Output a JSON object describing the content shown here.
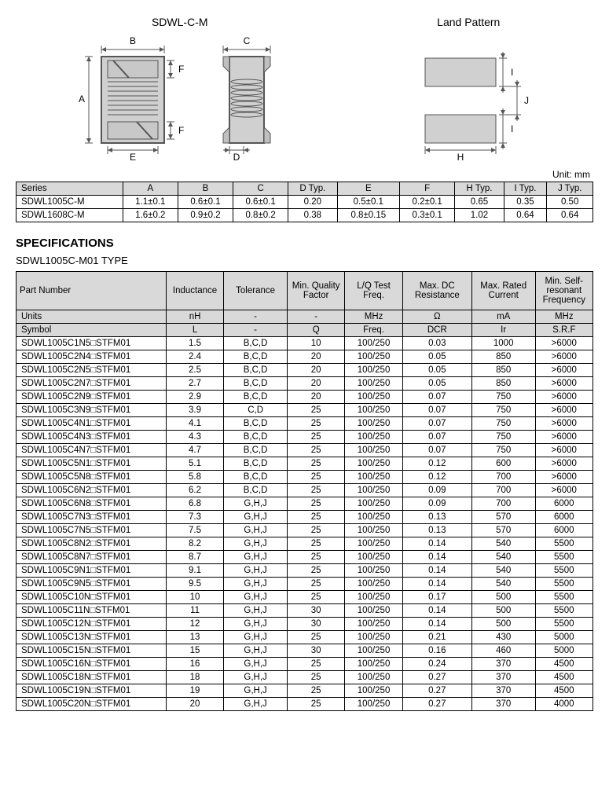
{
  "diagrams": {
    "left_title": "SDWL-C-M",
    "right_title": "Land Pattern",
    "unit": "Unit: mm",
    "labels": {
      "A": "A",
      "B": "B",
      "C": "C",
      "D": "D",
      "E": "E",
      "F": "F",
      "H": "H",
      "I": "I",
      "J": "J"
    }
  },
  "dim_table": {
    "columns": [
      "Series",
      "A",
      "B",
      "C",
      "D Typ.",
      "E",
      "F",
      "H Typ.",
      "I Typ.",
      "J Typ."
    ],
    "rows": [
      [
        "SDWL1005C-M",
        "1.1±0.1",
        "0.6±0.1",
        "0.6±0.1",
        "0.20",
        "0.5±0.1",
        "0.2±0.1",
        "0.65",
        "0.35",
        "0.50"
      ],
      [
        "SDWL1608C-M",
        "1.6±0.2",
        "0.9±0.2",
        "0.8±0.2",
        "0.38",
        "0.8±0.15",
        "0.3±0.1",
        "1.02",
        "0.64",
        "0.64"
      ]
    ]
  },
  "specifications": {
    "section_title": "SPECIFICATIONS",
    "type_title": "SDWL1005C-M01 TYPE",
    "header": [
      "Part Number",
      "Inductance",
      "Tolerance",
      "Min. Quality Factor",
      "L/Q Test Freq.",
      "Max. DC Resistance",
      "Max. Rated Current",
      "Min. Self-resonant Frequency"
    ],
    "units_row": [
      "Units",
      "nH",
      "-",
      "-",
      "MHz",
      "Ω",
      "mA",
      "MHz"
    ],
    "symbol_row": [
      "Symbol",
      "L",
      "-",
      "Q",
      "Freq.",
      "DCR",
      "Ir",
      "S.R.F"
    ],
    "rows": [
      [
        "SDWL1005C1N5□STFM01",
        "1.5",
        "B,C,D",
        "10",
        "100/250",
        "0.03",
        "1000",
        ">6000"
      ],
      [
        "SDWL1005C2N4□STFM01",
        "2.4",
        "B,C,D",
        "20",
        "100/250",
        "0.05",
        "850",
        ">6000"
      ],
      [
        "SDWL1005C2N5□STFM01",
        "2.5",
        "B,C,D",
        "20",
        "100/250",
        "0.05",
        "850",
        ">6000"
      ],
      [
        "SDWL1005C2N7□STFM01",
        "2.7",
        "B,C,D",
        "20",
        "100/250",
        "0.05",
        "850",
        ">6000"
      ],
      [
        "SDWL1005C2N9□STFM01",
        "2.9",
        "B,C,D",
        "20",
        "100/250",
        "0.07",
        "750",
        ">6000"
      ],
      [
        "SDWL1005C3N9□STFM01",
        "3.9",
        "C,D",
        "25",
        "100/250",
        "0.07",
        "750",
        ">6000"
      ],
      [
        "SDWL1005C4N1□STFM01",
        "4.1",
        "B,C,D",
        "25",
        "100/250",
        "0.07",
        "750",
        ">6000"
      ],
      [
        "SDWL1005C4N3□STFM01",
        "4.3",
        "B,C,D",
        "25",
        "100/250",
        "0.07",
        "750",
        ">6000"
      ],
      [
        "SDWL1005C4N7□STFM01",
        "4.7",
        "B,C,D",
        "25",
        "100/250",
        "0.07",
        "750",
        ">6000"
      ],
      [
        "SDWL1005C5N1□STFM01",
        "5.1",
        "B,C,D",
        "25",
        "100/250",
        "0.12",
        "600",
        ">6000"
      ],
      [
        "SDWL1005C5N8□STFM01",
        "5.8",
        "B,C,D",
        "25",
        "100/250",
        "0.12",
        "700",
        ">6000"
      ],
      [
        "SDWL1005C6N2□STFM01",
        "6.2",
        "B,C,D",
        "25",
        "100/250",
        "0.09",
        "700",
        ">6000"
      ],
      [
        "SDWL1005C6N8□STFM01",
        "6.8",
        "G,H,J",
        "25",
        "100/250",
        "0.09",
        "700",
        "6000"
      ],
      [
        "SDWL1005C7N3□STFM01",
        "7.3",
        "G,H,J",
        "25",
        "100/250",
        "0.13",
        "570",
        "6000"
      ],
      [
        "SDWL1005C7N5□STFM01",
        "7.5",
        "G,H,J",
        "25",
        "100/250",
        "0.13",
        "570",
        "6000"
      ],
      [
        "SDWL1005C8N2□STFM01",
        "8.2",
        "G,H,J",
        "25",
        "100/250",
        "0.14",
        "540",
        "5500"
      ],
      [
        "SDWL1005C8N7□STFM01",
        "8.7",
        "G,H,J",
        "25",
        "100/250",
        "0.14",
        "540",
        "5500"
      ],
      [
        "SDWL1005C9N1□STFM01",
        "9.1",
        "G,H,J",
        "25",
        "100/250",
        "0.14",
        "540",
        "5500"
      ],
      [
        "SDWL1005C9N5□STFM01",
        "9.5",
        "G,H,J",
        "25",
        "100/250",
        "0.14",
        "540",
        "5500"
      ],
      [
        "SDWL1005C10N□STFM01",
        "10",
        "G,H,J",
        "25",
        "100/250",
        "0.17",
        "500",
        "5500"
      ],
      [
        "SDWL1005C11N□STFM01",
        "11",
        "G,H,J",
        "30",
        "100/250",
        "0.14",
        "500",
        "5500"
      ],
      [
        "SDWL1005C12N□STFM01",
        "12",
        "G,H,J",
        "30",
        "100/250",
        "0.14",
        "500",
        "5500"
      ],
      [
        "SDWL1005C13N□STFM01",
        "13",
        "G,H,J",
        "25",
        "100/250",
        "0.21",
        "430",
        "5000"
      ],
      [
        "SDWL1005C15N□STFM01",
        "15",
        "G,H,J",
        "30",
        "100/250",
        "0.16",
        "460",
        "5000"
      ],
      [
        "SDWL1005C16N□STFM01",
        "16",
        "G,H,J",
        "25",
        "100/250",
        "0.24",
        "370",
        "4500"
      ],
      [
        "SDWL1005C18N□STFM01",
        "18",
        "G,H,J",
        "25",
        "100/250",
        "0.27",
        "370",
        "4500"
      ],
      [
        "SDWL1005C19N□STFM01",
        "19",
        "G,H,J",
        "25",
        "100/250",
        "0.27",
        "370",
        "4500"
      ],
      [
        "SDWL1005C20N□STFM01",
        "20",
        "G,H,J",
        "25",
        "100/250",
        "0.27",
        "370",
        "4000"
      ]
    ]
  },
  "colors": {
    "header_bg": "#d9d9d9",
    "border": "#000000",
    "diagram_fill": "#d0d0d0",
    "diagram_stroke": "#555555"
  }
}
